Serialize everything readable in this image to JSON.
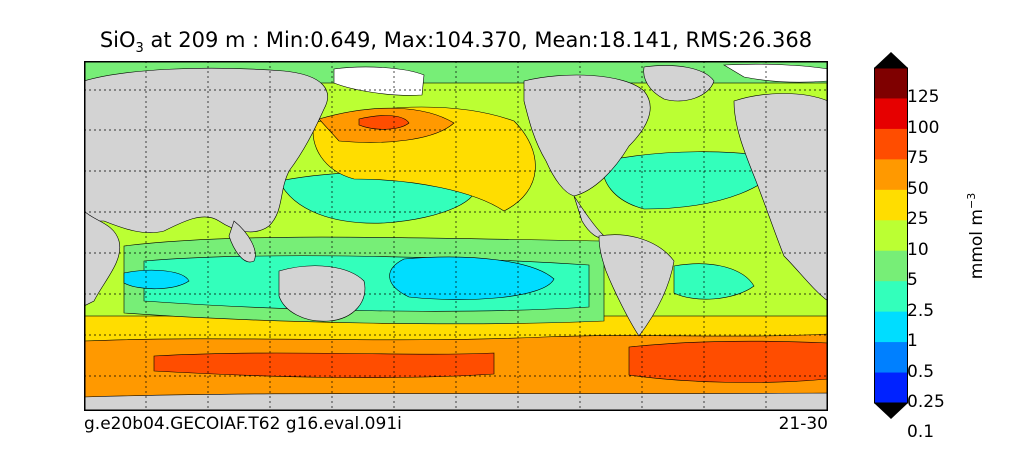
{
  "title": {
    "var": "SiO",
    "sub": "3",
    "rest": " at 209 m : Min:0.649, Max:104.370, Mean:18.141, RMS:26.368"
  },
  "footer": {
    "case": "g.e20b04.GECOIAF.T62 g16.eval.091i",
    "years": "21-30"
  },
  "colorbar": {
    "units_base": "mmol m",
    "units_exp": "−3",
    "ticks": [
      "125",
      "100",
      "75",
      "50",
      "25",
      "10",
      "5",
      "2.5",
      "1",
      "0.5",
      "0.25",
      "0.1"
    ],
    "colors": [
      "#7f0000",
      "#e60000",
      "#ff4d00",
      "#ff9900",
      "#ffdd00",
      "#bbff33",
      "#77ee77",
      "#33ffbb",
      "#00ddff",
      "#0080ff",
      "#0022ff",
      "#0000cc",
      "#00007f"
    ]
  },
  "map": {
    "land_color": "#d3d3d3",
    "ice_color": "#ffffff"
  }
}
